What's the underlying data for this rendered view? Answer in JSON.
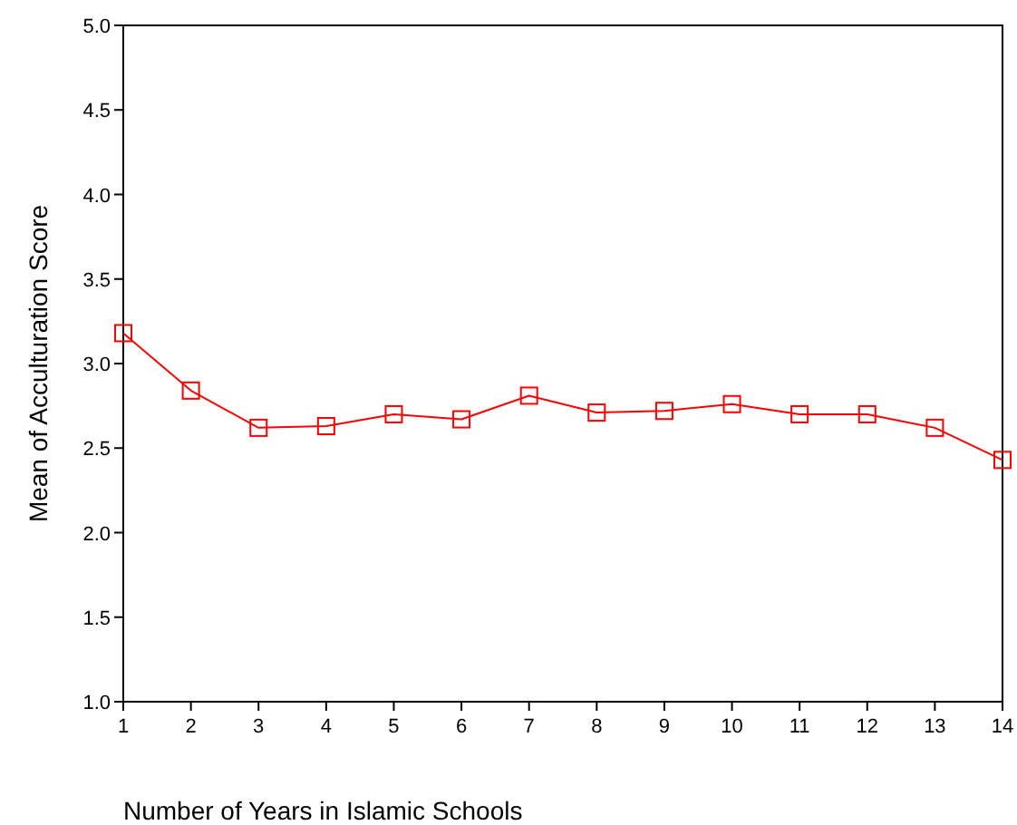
{
  "chart_data": {
    "type": "line",
    "xlabel": "Number of Years in Islamic Schools",
    "ylabel": "Mean of Acculturation Score",
    "x": [
      1,
      2,
      3,
      4,
      5,
      6,
      7,
      8,
      9,
      10,
      11,
      12,
      13,
      14
    ],
    "series": [
      {
        "color": "#ff0000",
        "values": [
          3.18,
          2.84,
          2.62,
          2.63,
          2.7,
          2.67,
          2.81,
          2.71,
          2.72,
          2.76,
          2.7,
          2.7,
          2.62,
          2.43
        ]
      }
    ],
    "xlim": [
      1,
      14
    ],
    "xticks": [
      1,
      2,
      3,
      4,
      5,
      6,
      7,
      8,
      9,
      10,
      11,
      12,
      13,
      14
    ],
    "ylim": [
      1,
      5
    ],
    "yticks": [
      {
        "value": 1,
        "label": "1.0"
      },
      {
        "value": 1.5,
        "label": "1.5"
      },
      {
        "value": 2,
        "label": "2.0"
      },
      {
        "value": 2.5,
        "label": "2.5"
      },
      {
        "value": 3,
        "label": "3.0"
      },
      {
        "value": 3.5,
        "label": "3.5"
      },
      {
        "value": 4,
        "label": "4.0"
      },
      {
        "value": 4.5,
        "label": "4.5"
      },
      {
        "value": 5,
        "label": "5.0"
      }
    ],
    "grid": false,
    "marker": "square",
    "line_style": "solid"
  }
}
